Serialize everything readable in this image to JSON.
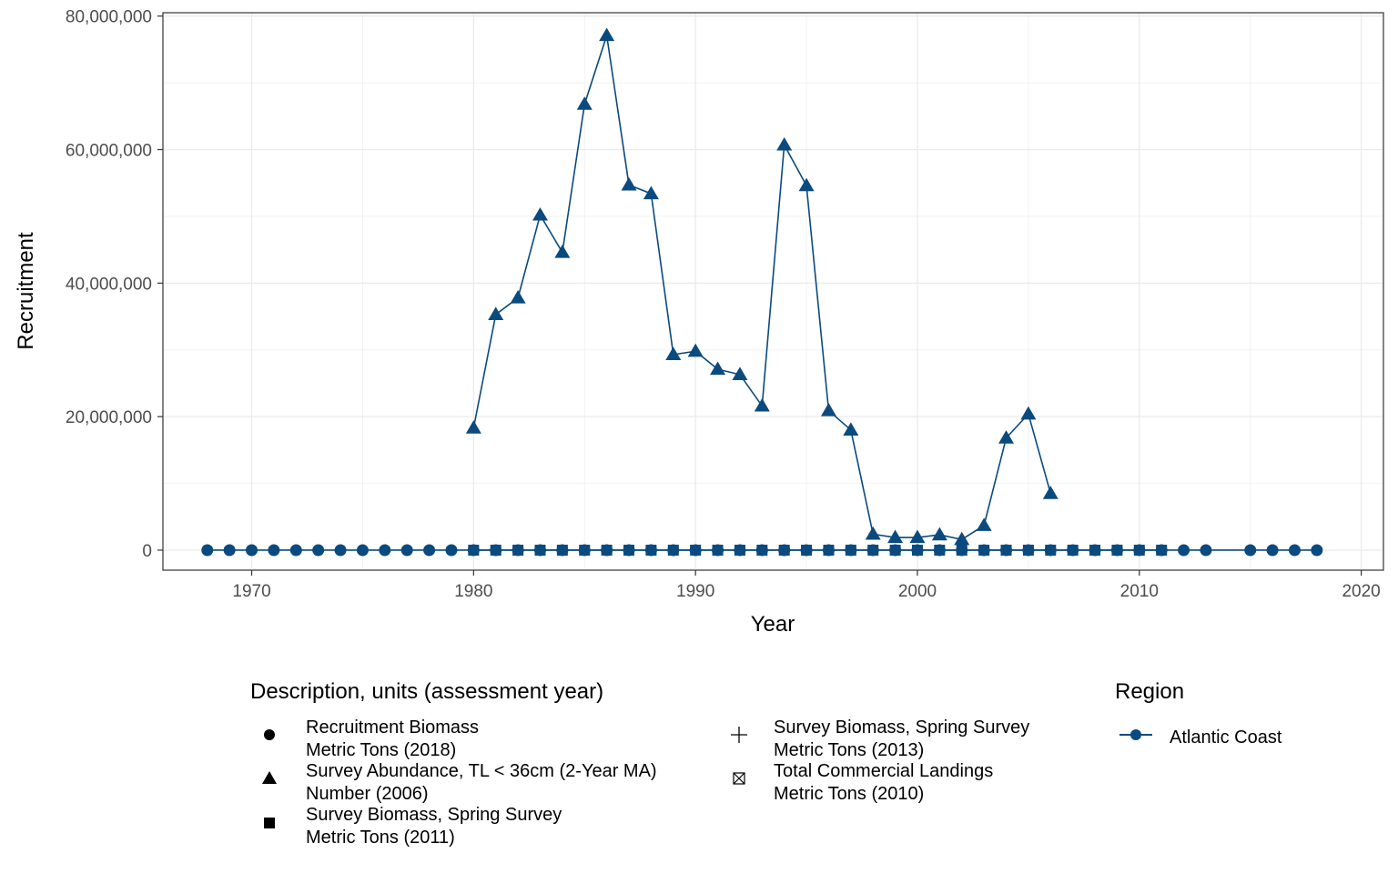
{
  "chart_data": {
    "type": "line",
    "xlabel": "Year",
    "ylabel": "Recruitment",
    "xlim": [
      1966,
      2021
    ],
    "ylim": [
      -3000000,
      80500000
    ],
    "x_ticks": [
      1970,
      1980,
      1990,
      2000,
      2010,
      2020
    ],
    "x_tick_labels": [
      "1970",
      "1980",
      "1990",
      "2000",
      "2010",
      "2020"
    ],
    "y_ticks": [
      0,
      20000000,
      40000000,
      60000000,
      80000000
    ],
    "y_tick_labels": [
      "0",
      "20,000,000",
      "40,000,000",
      "60,000,000",
      "80,000,000"
    ],
    "grid": true,
    "line_color": "#0b4a7e",
    "legend_placement": "bottom",
    "series": [
      {
        "name": "Recruitment Biomass\nMetric Tons (2018)",
        "shape": "circle",
        "x": [
          1968,
          1969,
          1970,
          1971,
          1972,
          1973,
          1974,
          1975,
          1976,
          1977,
          1978,
          1979,
          1980,
          1981,
          1982,
          1983,
          1984,
          1985,
          1986,
          1987,
          1988,
          1989,
          1990,
          1991,
          1992,
          1993,
          1994,
          1995,
          1996,
          1997,
          1998,
          1999,
          2000,
          2001,
          2002,
          2003,
          2004,
          2005,
          2006,
          2007,
          2008,
          2009,
          2010,
          2011,
          2012,
          2013,
          2015,
          2016,
          2017,
          2018
        ],
        "y": [
          0,
          0,
          0,
          0,
          0,
          0,
          0,
          0,
          0,
          0,
          0,
          0,
          0,
          0,
          0,
          0,
          0,
          0,
          0,
          0,
          0,
          0,
          0,
          0,
          0,
          0,
          0,
          0,
          0,
          0,
          0,
          0,
          0,
          0,
          0,
          0,
          0,
          0,
          0,
          0,
          0,
          0,
          0,
          0,
          0,
          0,
          0,
          0,
          0,
          0
        ]
      },
      {
        "name": "Survey Abundance, TL < 36cm (2-Year MA)\nNumber (2006)",
        "shape": "triangle",
        "x": [
          1980,
          1981,
          1982,
          1983,
          1984,
          1985,
          1986,
          1987,
          1988,
          1989,
          1990,
          1991,
          1992,
          1993,
          1994,
          1995,
          1996,
          1997,
          1998,
          1999,
          2000,
          2001,
          2002,
          2003,
          2004,
          2005,
          2006
        ],
        "y": [
          18300000,
          35300000,
          37800000,
          50200000,
          44600000,
          66800000,
          77100000,
          54700000,
          53400000,
          29300000,
          29800000,
          27100000,
          26300000,
          21600000,
          60700000,
          54600000,
          20900000,
          18000000,
          2400000,
          1900000,
          1900000,
          2300000,
          1600000,
          3700000,
          16800000,
          20400000,
          8500000
        ]
      },
      {
        "name": "Survey Biomass, Spring Survey\nMetric Tons (2011)",
        "shape": "square",
        "x": [
          1980,
          1981,
          1982,
          1983,
          1984,
          1985,
          1986,
          1987,
          1988,
          1989,
          1990,
          1991,
          1992,
          1993,
          1994,
          1995,
          1996,
          1997,
          1998,
          1999,
          2000,
          2001,
          2002,
          2003,
          2004,
          2005,
          2006,
          2007,
          2008,
          2009,
          2010,
          2011
        ],
        "y": [
          0,
          0,
          0,
          0,
          0,
          0,
          0,
          0,
          0,
          0,
          0,
          0,
          0,
          0,
          0,
          0,
          0,
          0,
          0,
          0,
          0,
          0,
          0,
          0,
          0,
          0,
          0,
          0,
          0,
          0,
          0,
          0
        ]
      },
      {
        "name": "Survey Biomass, Spring Survey\nMetric Tons (2013)",
        "shape": "plus",
        "x": [],
        "y": []
      },
      {
        "name": "Total Commercial Landings\nMetric Tons (2010)",
        "shape": "boxcross",
        "x": [],
        "y": []
      }
    ],
    "legends": {
      "shape_title": "Description, units (assessment year)",
      "color_title": "Region",
      "color_entries": [
        "Atlantic Coast"
      ]
    }
  }
}
